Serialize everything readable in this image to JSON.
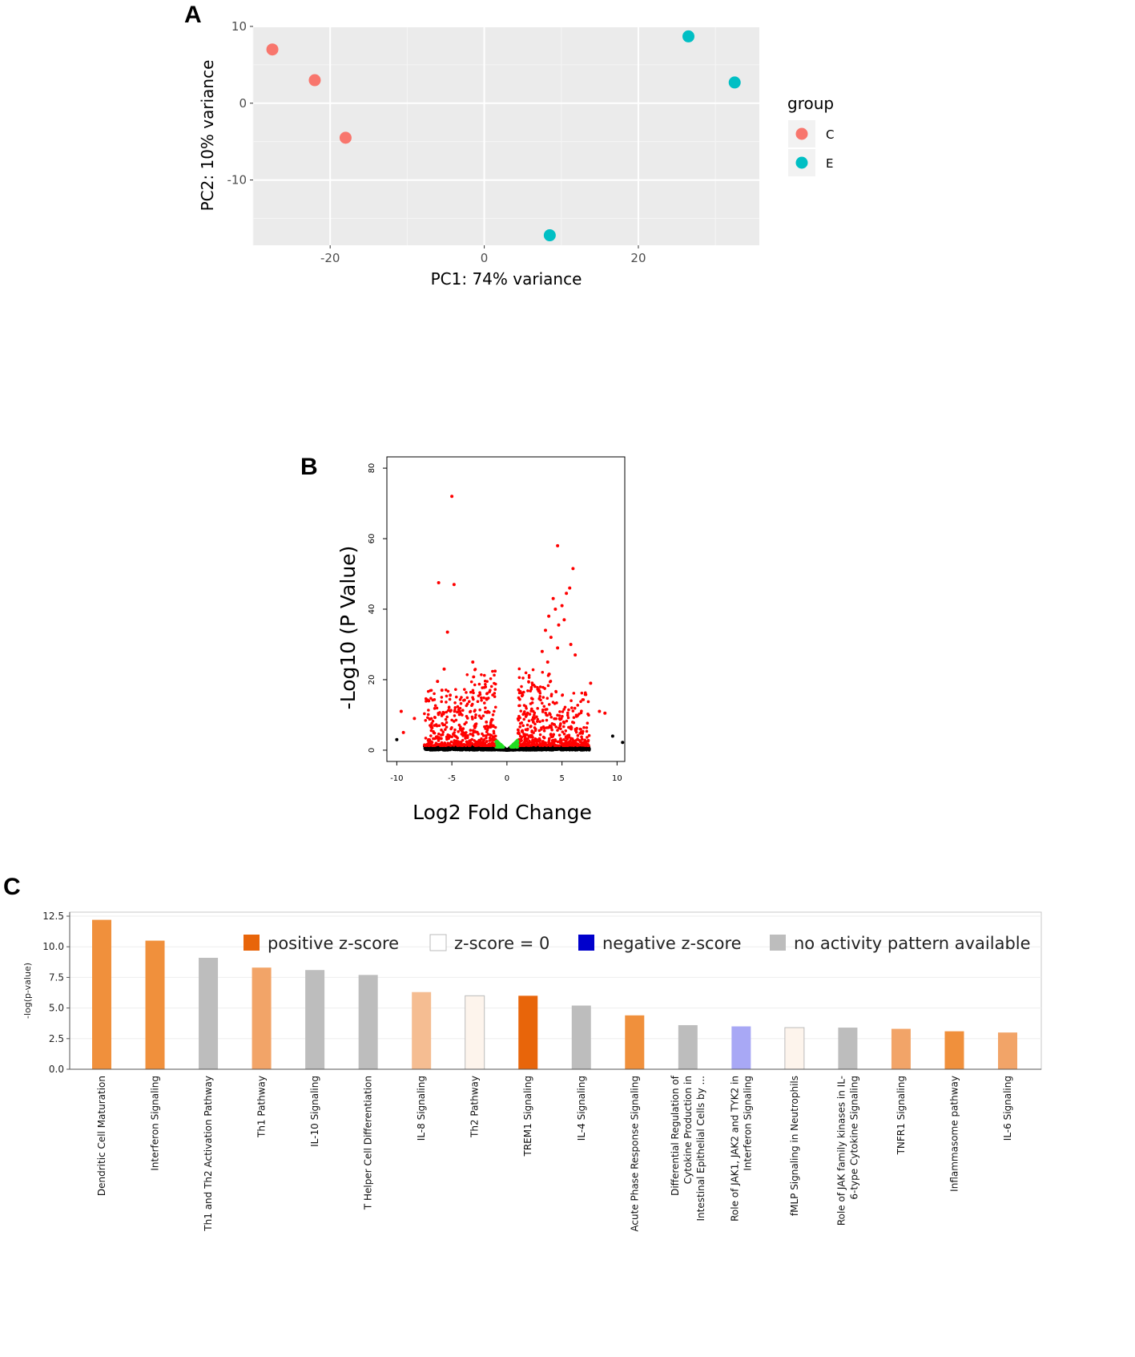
{
  "chart_data": [
    {
      "panel": "A",
      "type": "scatter",
      "xlabel": "PC1: 74% variance",
      "ylabel": "PC2: 10% variance",
      "xlim": [
        -30,
        35.7
      ],
      "ylim": [
        -18.5,
        10.1
      ],
      "xticks": [
        -20,
        0,
        20
      ],
      "yticks": [
        -10,
        0,
        10
      ],
      "grid": true,
      "legend": {
        "title": "group",
        "position": "right",
        "entries": [
          {
            "label": "C",
            "color": "#F8766D"
          },
          {
            "label": "E",
            "color": "#00BFC4"
          }
        ]
      },
      "series": [
        {
          "name": "C",
          "color": "#F8766D",
          "points": [
            [
              -27.5,
              7
            ],
            [
              -22,
              3
            ],
            [
              -18,
              -4.5
            ]
          ]
        },
        {
          "name": "E",
          "color": "#00BFC4",
          "points": [
            [
              26.5,
              8.7
            ],
            [
              32.5,
              2.7
            ],
            [
              8.5,
              -17.2
            ]
          ]
        }
      ]
    },
    {
      "panel": "B",
      "type": "scatter",
      "xlabel": "Log2 Fold Change",
      "ylabel": "-Log10 (P Value)",
      "xlim": [
        -10.9,
        10.7
      ],
      "ylim": [
        -3.2,
        83.2
      ],
      "xticks": [
        -10,
        -5,
        0,
        5,
        10
      ],
      "yticks": [
        0,
        20,
        40,
        60,
        80
      ],
      "colors": {
        "significant": "#ff0000",
        "fold_only": "#22dd22",
        "not_significant": "#000000"
      },
      "highlighted_points": [
        [
          -5,
          72
        ],
        [
          4.6,
          58
        ],
        [
          6,
          51.5
        ],
        [
          -6.2,
          47.5
        ],
        [
          -4.8,
          47
        ],
        [
          5.7,
          46
        ],
        [
          5.4,
          44.5
        ],
        [
          4.2,
          43
        ],
        [
          5,
          41
        ],
        [
          4.4,
          40
        ],
        [
          3.8,
          38
        ],
        [
          5.2,
          37
        ],
        [
          4.7,
          35.5
        ],
        [
          3.5,
          34
        ],
        [
          -5.4,
          33.5
        ],
        [
          4,
          32
        ],
        [
          5.8,
          30
        ],
        [
          4.6,
          29
        ],
        [
          3.2,
          28
        ],
        [
          6.2,
          27
        ],
        [
          -5.7,
          23
        ],
        [
          -3.1,
          25
        ],
        [
          3.7,
          25
        ],
        [
          7.6,
          19
        ],
        [
          -7.1,
          14
        ],
        [
          -5.9,
          17
        ],
        [
          -6.3,
          19.5
        ],
        [
          -9.6,
          11
        ],
        [
          8.4,
          11
        ],
        [
          8.9,
          10.5
        ],
        [
          -8.4,
          9
        ],
        [
          9.6,
          4
        ],
        [
          -9.4,
          5
        ],
        [
          10.5,
          2.2
        ],
        [
          -10,
          3
        ]
      ],
      "background_point_count": 3000
    },
    {
      "panel": "C",
      "type": "bar",
      "ylabel": "-log(p-value)",
      "ylim": [
        0,
        12.5
      ],
      "yticks": [
        "0.0",
        "2.5",
        "5.0",
        "7.5",
        "10.0",
        "12.5"
      ],
      "legend": {
        "position": "top-right",
        "entries": [
          {
            "label": "positive z-score",
            "color": "#e8650a"
          },
          {
            "label": "z-score = 0",
            "color": "#ffffff"
          },
          {
            "label": "negative z-score",
            "color": "#0000cc"
          },
          {
            "label": "no activity pattern available",
            "color": "#bdbdbd"
          }
        ]
      },
      "categories": [
        [
          "Dendritic Cell Maturation"
        ],
        [
          "Interferon Signaling"
        ],
        [
          "Th1 and Th2 Activation Pathway"
        ],
        [
          "Th1 Pathway"
        ],
        [
          "IL-10 Signaling"
        ],
        [
          "T Helper Cell Differentiation"
        ],
        [
          "IL-8 Signaling"
        ],
        [
          "Th2 Pathway"
        ],
        [
          "TREM1 Signaling"
        ],
        [
          "IL-4 Signaling"
        ],
        [
          "Acute Phase Response Signaling"
        ],
        [
          "Differential Regulation of",
          "Cytokine Production in",
          "Intestinal Epithelial Cells by ..."
        ],
        [
          "Role of JAK1, JAK2 and TYK2 in",
          "Interferon Signaling"
        ],
        [
          "fMLP Signaling in Neutrophils"
        ],
        [
          "Role of JAK family kinases in IL-",
          "6-type Cytokine Signaling"
        ],
        [
          "TNFR1 Signaling"
        ],
        [
          "Inflammasome pathway"
        ],
        [
          "IL-6 Signaling"
        ]
      ],
      "values": [
        12.2,
        10.5,
        9.1,
        8.3,
        8.1,
        7.7,
        6.3,
        6.0,
        6.0,
        5.2,
        4.4,
        3.6,
        3.5,
        3.4,
        3.4,
        3.3,
        3.1,
        3.0
      ],
      "bar_colors": [
        "#f0903c",
        "#f0903c",
        "#bdbdbd",
        "#f2a468",
        "#bdbdbd",
        "#bdbdbd",
        "#f5bd92",
        "#fdf4ec",
        "#e8650a",
        "#bdbdbd",
        "#f0903c",
        "#bdbdbd",
        "#a8a8f5",
        "#fdf4ec",
        "#bdbdbd",
        "#f2a468",
        "#f0903c",
        "#f2a468"
      ]
    }
  ],
  "labels": {
    "panel_a": "A",
    "panel_b": "B",
    "panel_c": "C"
  }
}
